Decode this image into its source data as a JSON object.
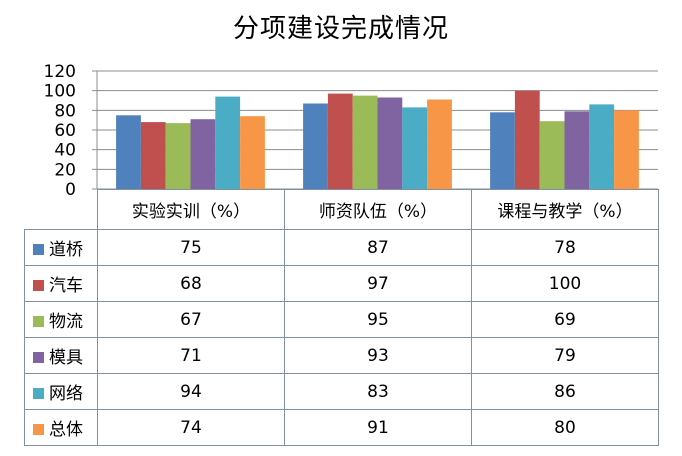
{
  "chart_data": {
    "type": "bar",
    "title": "分项建设完成情况",
    "categories": [
      "实验实训（%）",
      "师资队伍（%）",
      "课程与教学（%）"
    ],
    "series": [
      {
        "name": "道桥",
        "color": "#4f81bd",
        "values": [
          75,
          87,
          78
        ]
      },
      {
        "name": "汽车",
        "color": "#c0504d",
        "values": [
          68,
          97,
          100
        ]
      },
      {
        "name": "物流",
        "color": "#9bbb59",
        "values": [
          67,
          95,
          69
        ]
      },
      {
        "name": "模具",
        "color": "#8064a2",
        "values": [
          71,
          93,
          79
        ]
      },
      {
        "name": "网络",
        "color": "#4bacc6",
        "values": [
          94,
          83,
          86
        ]
      },
      {
        "name": "总体",
        "color": "#f79646",
        "values": [
          74,
          91,
          80
        ]
      }
    ],
    "ylim": [
      0,
      120
    ],
    "yticks": [
      0,
      20,
      40,
      60,
      80,
      100,
      120
    ],
    "grid": true,
    "legend": "data table",
    "xlabel": "",
    "ylabel": ""
  }
}
